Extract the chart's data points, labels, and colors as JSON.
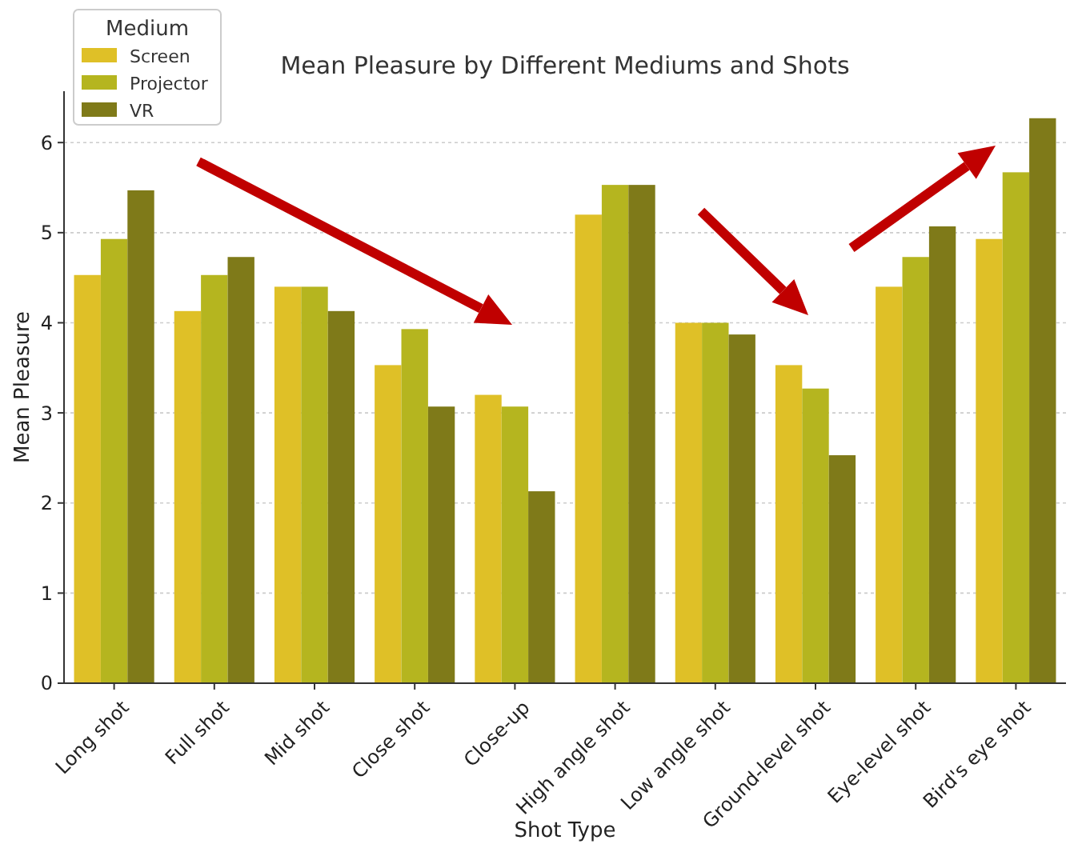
{
  "chart_data": {
    "type": "bar",
    "title": "Mean Pleasure by Different Mediums and Shots",
    "xlabel": "Shot Type",
    "ylabel": "Mean Pleasure",
    "legend_title": "Medium",
    "legend": "top left",
    "grid": "y",
    "categories": [
      "Long shot",
      "Full shot",
      "Mid shot",
      "Close shot",
      "Close-up",
      "High angle shot",
      "Low angle shot",
      "Ground-level shot",
      "Eye-level shot",
      "Bird's eye shot"
    ],
    "series": [
      {
        "name": "Screen",
        "color": "#dfc027",
        "values": [
          4.53,
          4.13,
          4.4,
          3.53,
          3.2,
          5.2,
          4.0,
          3.53,
          4.4,
          4.93
        ]
      },
      {
        "name": "Projector",
        "color": "#b5b51f",
        "values": [
          4.93,
          4.53,
          4.4,
          3.93,
          3.07,
          5.53,
          4.0,
          3.27,
          4.73,
          5.67
        ]
      },
      {
        "name": "VR",
        "color": "#7f7a19",
        "values": [
          5.47,
          4.73,
          4.13,
          3.07,
          2.13,
          5.53,
          3.87,
          2.53,
          5.07,
          6.27
        ]
      }
    ],
    "ylim": [
      0,
      6.57
    ],
    "yticks": [
      0,
      1,
      2,
      3,
      4,
      5,
      6
    ]
  }
}
